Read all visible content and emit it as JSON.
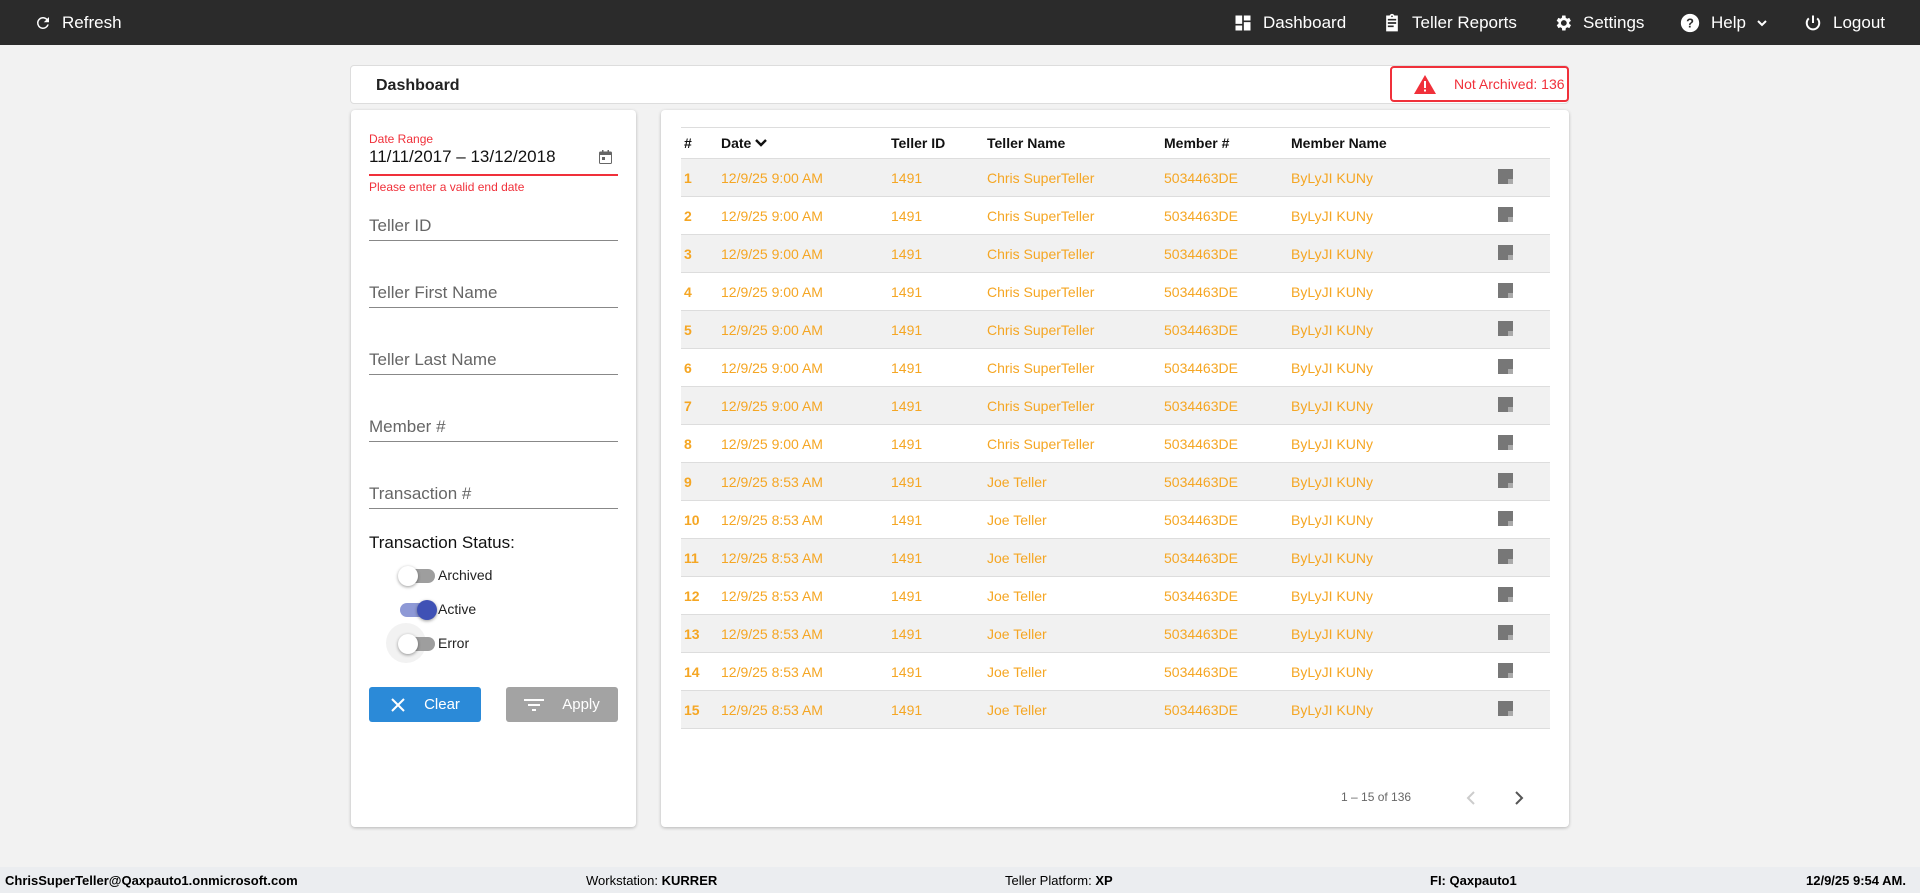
{
  "topbar": {
    "refresh": "Refresh",
    "dashboard": "Dashboard",
    "teller_reports": "Teller Reports",
    "settings": "Settings",
    "help": "Help",
    "logout": "Logout"
  },
  "header": {
    "title": "Dashboard",
    "badge": "Not Archived: 136",
    "badge_color": "#f0303a"
  },
  "filters": {
    "date_range_label": "Date Range",
    "date_range_value": "11/11/2017 – 13/12/2018",
    "date_error": "Please enter a valid end date",
    "teller_id": "Teller ID",
    "teller_first_name": "Teller First Name",
    "teller_last_name": "Teller Last Name",
    "member_no": "Member #",
    "transaction_no": "Transaction #",
    "status_label": "Transaction Status:",
    "statuses": [
      {
        "label": "Archived",
        "on": false
      },
      {
        "label": "Active",
        "on": true
      },
      {
        "label": "Error",
        "on": false
      }
    ],
    "clear": "Clear",
    "apply": "Apply"
  },
  "table": {
    "columns": [
      "#",
      "Date",
      "Teller ID",
      "Teller Name",
      "Member #",
      "Member Name"
    ],
    "sort_column": "Date",
    "sort_direction": "desc",
    "rows": [
      [
        "1",
        "12/9/25 9:00 AM",
        "1491",
        "Chris SuperTeller",
        "5034463DE",
        "ByLyJI KUNy"
      ],
      [
        "2",
        "12/9/25 9:00 AM",
        "1491",
        "Chris SuperTeller",
        "5034463DE",
        "ByLyJI KUNy"
      ],
      [
        "3",
        "12/9/25 9:00 AM",
        "1491",
        "Chris SuperTeller",
        "5034463DE",
        "ByLyJI KUNy"
      ],
      [
        "4",
        "12/9/25 9:00 AM",
        "1491",
        "Chris SuperTeller",
        "5034463DE",
        "ByLyJI KUNy"
      ],
      [
        "5",
        "12/9/25 9:00 AM",
        "1491",
        "Chris SuperTeller",
        "5034463DE",
        "ByLyJI KUNy"
      ],
      [
        "6",
        "12/9/25 9:00 AM",
        "1491",
        "Chris SuperTeller",
        "5034463DE",
        "ByLyJI KUNy"
      ],
      [
        "7",
        "12/9/25 9:00 AM",
        "1491",
        "Chris SuperTeller",
        "5034463DE",
        "ByLyJI KUNy"
      ],
      [
        "8",
        "12/9/25 9:00 AM",
        "1491",
        "Chris SuperTeller",
        "5034463DE",
        "ByLyJI KUNy"
      ],
      [
        "9",
        "12/9/25 8:53 AM",
        "1491",
        "Joe Teller",
        "5034463DE",
        "ByLyJI KUNy"
      ],
      [
        "10",
        "12/9/25 8:53 AM",
        "1491",
        "Joe Teller",
        "5034463DE",
        "ByLyJI KUNy"
      ],
      [
        "11",
        "12/9/25 8:53 AM",
        "1491",
        "Joe Teller",
        "5034463DE",
        "ByLyJI KUNy"
      ],
      [
        "12",
        "12/9/25 8:53 AM",
        "1491",
        "Joe Teller",
        "5034463DE",
        "ByLyJI KUNy"
      ],
      [
        "13",
        "12/9/25 8:53 AM",
        "1491",
        "Joe Teller",
        "5034463DE",
        "ByLyJI KUNy"
      ],
      [
        "14",
        "12/9/25 8:53 AM",
        "1491",
        "Joe Teller",
        "5034463DE",
        "ByLyJI KUNy"
      ],
      [
        "15",
        "12/9/25 8:53 AM",
        "1491",
        "Joe Teller",
        "5034463DE",
        "ByLyJI KUNy"
      ]
    ],
    "row_icon": "note-icon",
    "pagination": "1 – 15 of 136"
  },
  "footer": {
    "user": "ChrisSuperTeller@Qaxpauto1.onmicrosoft.com",
    "workstation_label": "Workstation:",
    "workstation": "KURRER",
    "platform_label": "Teller Platform:",
    "platform": "XP",
    "fi_label": "FI:",
    "fi": "Qaxpauto1",
    "datetime": "12/9/25 9:54 AM."
  }
}
